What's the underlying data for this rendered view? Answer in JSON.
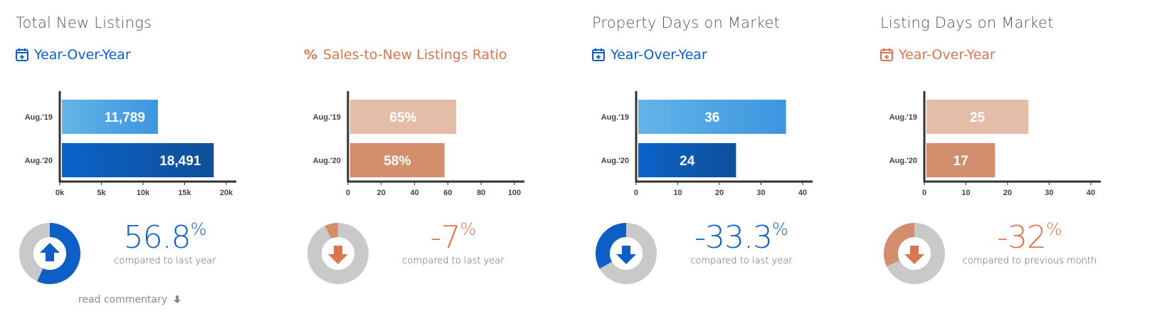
{
  "colors": {
    "blue": "#0d5fc6",
    "blue_light": "#5aaee6",
    "orange": "#d9764f",
    "orange_light": "#e4bda8",
    "orange_dark": "#d38e6e",
    "gray": "#c9c9c9"
  },
  "panels": [
    {
      "title": "Total New Listings",
      "subtitle": "Year-Over-Year",
      "subtitle_icon": "calendar-icon",
      "theme": "blue",
      "big_value": "56.8",
      "big_unit": "%",
      "caption": "compared to last year",
      "direction": "up",
      "donut_fraction": 0.568
    },
    {
      "title": "",
      "subtitle": "Sales-to-New Listings Ratio",
      "subtitle_icon": "percent-icon",
      "theme": "orange",
      "big_value": "-7",
      "big_unit": "%",
      "caption": "compared to last year",
      "direction": "down",
      "donut_fraction": 0.07
    },
    {
      "title": "Property Days on Market",
      "subtitle": "Year-Over-Year",
      "subtitle_icon": "calendar-icon",
      "theme": "blue",
      "big_value": "-33.3",
      "big_unit": "%",
      "caption": "compared to last year",
      "direction": "down",
      "donut_fraction": 0.333
    },
    {
      "title": "Listing Days on Market",
      "subtitle": "Year-Over-Year",
      "subtitle_icon": "calendar-icon",
      "theme": "orange",
      "big_value": "-32",
      "big_unit": "%",
      "caption": "compared to previous month",
      "direction": "down",
      "donut_fraction": 0.32
    }
  ],
  "commentary": "read commentary",
  "chart_data": [
    {
      "type": "bar",
      "orientation": "horizontal",
      "categories": [
        "Aug.'19",
        "Aug.'20"
      ],
      "values": [
        11789,
        18491
      ],
      "value_labels": [
        "11,789",
        "18,491"
      ],
      "xlim": [
        0,
        20000
      ],
      "x_ticks": [
        0,
        5000,
        10000,
        15000,
        20000
      ],
      "x_tick_labels": [
        "0k",
        "5k",
        "10k",
        "15k",
        "20k"
      ]
    },
    {
      "type": "bar",
      "orientation": "horizontal",
      "categories": [
        "Aug.'19",
        "Aug.'20"
      ],
      "values": [
        65,
        58
      ],
      "value_labels": [
        "65%",
        "58%"
      ],
      "xlim": [
        0,
        100
      ],
      "x_ticks": [
        0,
        20,
        40,
        60,
        80,
        100
      ],
      "x_tick_labels": [
        "0",
        "20",
        "40",
        "60",
        "80",
        "100"
      ]
    },
    {
      "type": "bar",
      "orientation": "horizontal",
      "categories": [
        "Aug.'19",
        "Aug.'20"
      ],
      "values": [
        36,
        24
      ],
      "value_labels": [
        "36",
        "24"
      ],
      "xlim": [
        0,
        40
      ],
      "x_ticks": [
        0,
        10,
        20,
        30,
        40
      ],
      "x_tick_labels": [
        "0",
        "10",
        "20",
        "30",
        "40"
      ]
    },
    {
      "type": "bar",
      "orientation": "horizontal",
      "categories": [
        "Aug.'19",
        "Aug.'20"
      ],
      "values": [
        25,
        17
      ],
      "value_labels": [
        "25",
        "17"
      ],
      "xlim": [
        0,
        40
      ],
      "x_ticks": [
        0,
        10,
        20,
        30,
        40
      ],
      "x_tick_labels": [
        "0",
        "10",
        "20",
        "30",
        "40"
      ]
    }
  ]
}
